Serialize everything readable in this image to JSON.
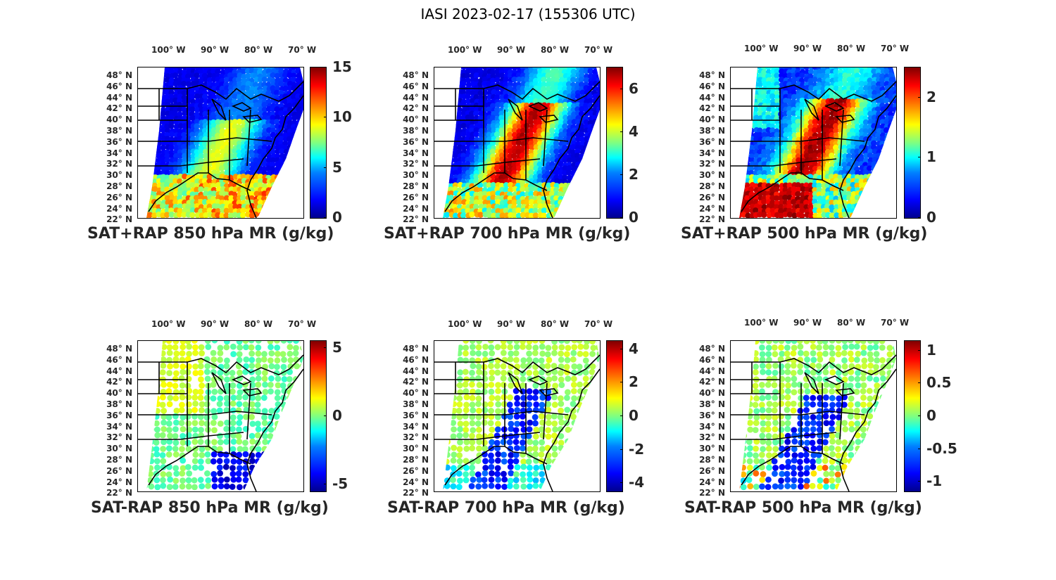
{
  "figure": {
    "title": "IASI 2023-02-17 (155306 UTC)"
  },
  "lon_labels": [
    "100° W",
    "90° W",
    "80° W",
    "70° W"
  ],
  "lat_labels": [
    "48° N",
    "46° N",
    "44° N",
    "42° N",
    "40° N",
    "38° N",
    "36° N",
    "34° N",
    "32° N",
    "30° N",
    "28° N",
    "26° N",
    "24° N",
    "22° N"
  ],
  "colors": {
    "jet_low": "#00008f",
    "jet_mid": "#80ff80",
    "jet_high": "#800000",
    "outline": "#000000"
  },
  "panels": [
    {
      "id": "sat-rap-850-sum",
      "title": "SAT+RAP 850 hPa MR (g/kg)",
      "variable": "mixing ratio",
      "level_hpa": 850,
      "quantity": "SAT+RAP",
      "colorbar": {
        "min": 0,
        "max": 15,
        "ticks": [
          "0",
          "5",
          "10",
          "15"
        ],
        "tick_values": [
          0,
          5,
          10,
          15
        ]
      },
      "field_style": "sum-low"
    },
    {
      "id": "sat-rap-700-sum",
      "title": "SAT+RAP 700 hPa MR (g/kg)",
      "variable": "mixing ratio",
      "level_hpa": 700,
      "quantity": "SAT+RAP",
      "colorbar": {
        "min": 0,
        "max": 7,
        "ticks": [
          "0",
          "2",
          "4",
          "6"
        ],
        "tick_values": [
          0,
          2,
          4,
          6
        ]
      },
      "field_style": "sum-mid"
    },
    {
      "id": "sat-rap-500-sum",
      "title": "SAT+RAP 500 hPa MR (g/kg)",
      "variable": "mixing ratio",
      "level_hpa": 500,
      "quantity": "SAT+RAP",
      "colorbar": {
        "min": 0,
        "max": 2.5,
        "ticks": [
          "0",
          "1",
          "2"
        ],
        "tick_values": [
          0,
          1,
          2
        ]
      },
      "field_style": "sum-high"
    },
    {
      "id": "sat-rap-850-diff",
      "title": "SAT-RAP 850 hPa MR (g/kg)",
      "variable": "mixing ratio",
      "level_hpa": 850,
      "quantity": "SAT-RAP",
      "colorbar": {
        "min": -5.5,
        "max": 5.5,
        "ticks": [
          "-5",
          "0",
          "5"
        ],
        "tick_values": [
          -5,
          0,
          5
        ]
      },
      "field_style": "diff-850"
    },
    {
      "id": "sat-rap-700-diff",
      "title": "SAT-RAP 700 hPa MR (g/kg)",
      "variable": "mixing ratio",
      "level_hpa": 700,
      "quantity": "SAT-RAP",
      "colorbar": {
        "min": -4.5,
        "max": 4.5,
        "ticks": [
          "-4",
          "-2",
          "0",
          "2",
          "4"
        ],
        "tick_values": [
          -4,
          -2,
          0,
          2,
          4
        ]
      },
      "field_style": "diff-700"
    },
    {
      "id": "sat-rap-500-diff",
      "title": "SAT-RAP 500 hPa MR (g/kg)",
      "variable": "mixing ratio",
      "level_hpa": 500,
      "quantity": "SAT-RAP",
      "colorbar": {
        "min": -1.15,
        "max": 1.15,
        "ticks": [
          "-1",
          "-0.5",
          "0",
          "0.5",
          "1"
        ],
        "tick_values": [
          -1,
          -0.5,
          0,
          0.5,
          1
        ]
      },
      "field_style": "diff-500"
    }
  ]
}
